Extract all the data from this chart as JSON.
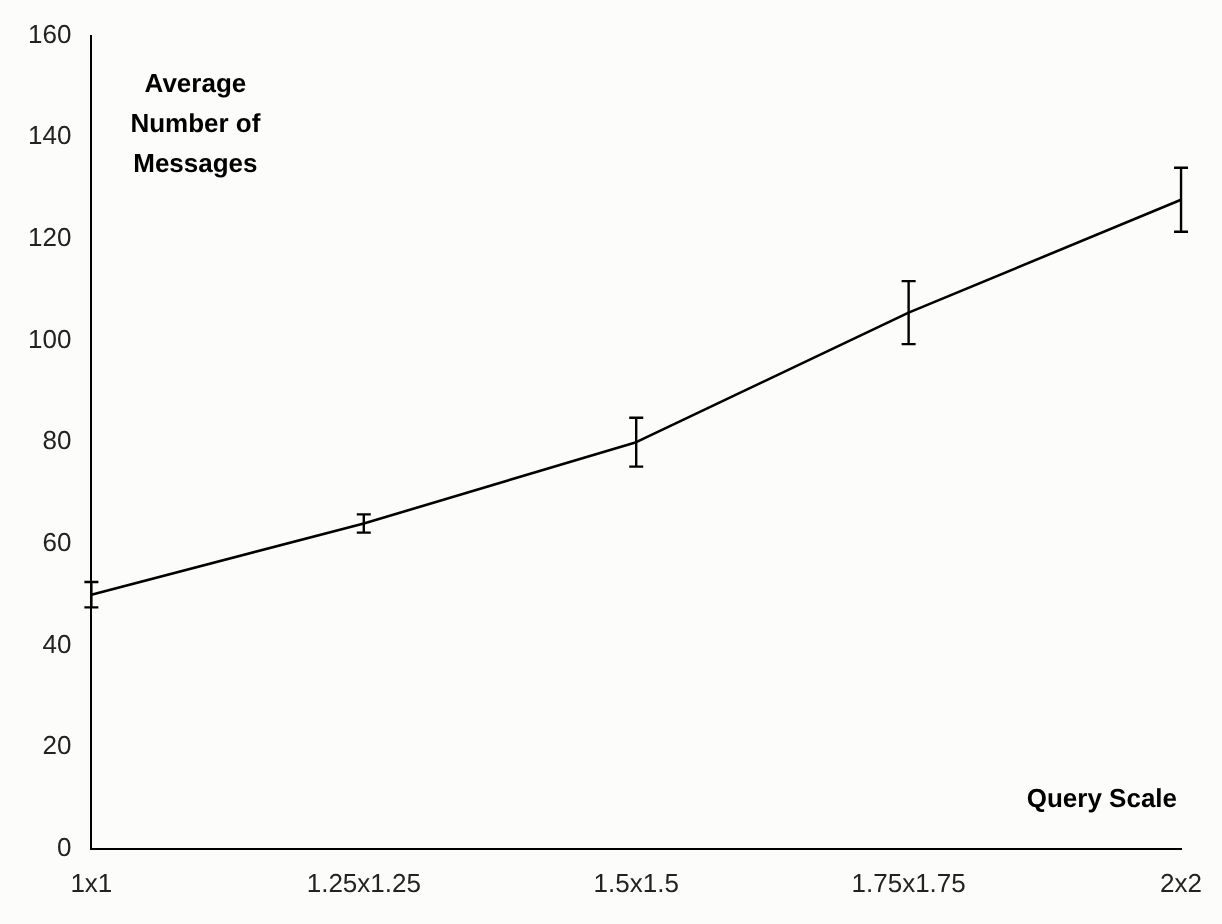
{
  "chart_data": {
    "type": "line",
    "xlabel": "Query Scale",
    "ylabel": "Average Number of Messages",
    "categories": [
      "1x1",
      "1.25x1.25",
      "1.5x1.5",
      "1.75x1.75",
      "2x2"
    ],
    "series": [
      {
        "color": "#000000",
        "values": [
          50,
          64,
          80,
          105.5,
          127.7
        ],
        "errors": [
          2.5,
          1.8,
          4.8,
          6.2,
          6.3
        ]
      }
    ],
    "ylim": [
      0,
      160
    ],
    "yticks": [
      0,
      20,
      40,
      60,
      80,
      100,
      120,
      140,
      160
    ],
    "grid": false,
    "legend": false,
    "marker": "none",
    "line_style": "solid"
  }
}
